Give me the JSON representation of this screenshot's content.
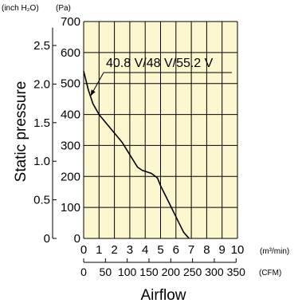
{
  "chart_data": {
    "type": "line",
    "title": "",
    "xlabel": "Airflow",
    "ylabel": "Static pressure",
    "x_unit_primary": "(m³/min)",
    "x_unit_secondary": "(CFM)",
    "y_unit_primary": "(Pa)",
    "y_unit_secondary": "(inch H₂O)",
    "xlim": [
      0,
      10
    ],
    "ylim": [
      0,
      700
    ],
    "x_ticks": [
      0,
      1,
      2,
      3,
      4,
      5,
      6,
      7,
      8,
      9,
      10
    ],
    "x_tick_labels": [
      "0",
      "1",
      "2",
      "3",
      "4",
      "5",
      "6",
      "7",
      "8",
      "9",
      "10"
    ],
    "cfm_ticks": [
      0,
      50,
      100,
      150,
      200,
      250,
      300,
      350
    ],
    "cfm_tick_labels": [
      "0",
      "50",
      "100",
      "150",
      "200",
      "250",
      "300",
      "350"
    ],
    "y_ticks": [
      0,
      100,
      200,
      300,
      400,
      500,
      600,
      700
    ],
    "y_tick_labels": [
      "0",
      "100",
      "200",
      "300",
      "400",
      "500",
      "600",
      "700"
    ],
    "inch_ticks": [
      0,
      0.5,
      1.0,
      1.5,
      2.0,
      2.5
    ],
    "inch_tick_labels": [
      "0",
      "0.5",
      "1.0",
      "1.5",
      "2.0",
      "2.5"
    ],
    "grid": true,
    "background_color": "#fdf7cf",
    "series": [
      {
        "name": "40.8 V/48 V/55.2 V",
        "color": "#000000",
        "x": [
          0,
          0.3,
          0.6,
          1.0,
          1.5,
          2.0,
          2.5,
          3.0,
          3.5,
          3.8,
          4.1,
          4.4,
          4.8,
          5.0,
          5.5,
          6.0,
          6.5,
          6.85
        ],
        "y": [
          540,
          480,
          435,
          400,
          370,
          340,
          310,
          270,
          230,
          220,
          215,
          210,
          195,
          170,
          120,
          70,
          20,
          0
        ]
      }
    ]
  }
}
